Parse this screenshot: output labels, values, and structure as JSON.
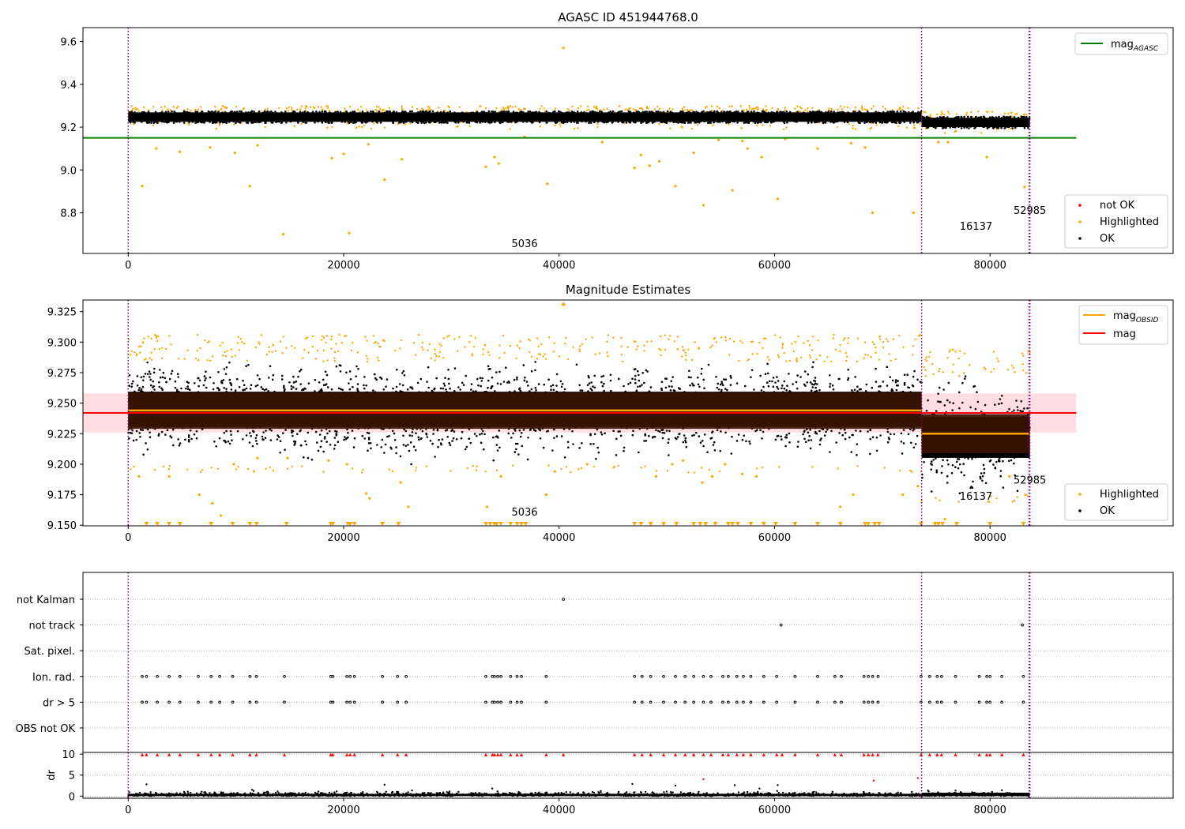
{
  "chart_data": [
    {
      "type": "scatter",
      "title": "AGASC ID 451944768.0",
      "xlim": [
        -4200,
        97000
      ],
      "ylim": [
        8.61,
        9.665
      ],
      "xticks": [
        0,
        20000,
        40000,
        60000,
        80000
      ],
      "yticks": [
        8.8,
        9.0,
        9.2,
        9.4,
        9.6
      ],
      "ytick_labels": [
        "8.8",
        "9.0",
        "9.2",
        "9.4",
        "9.6"
      ],
      "observation_boundaries": [
        0,
        73650,
        83700
      ],
      "observation_labels": [
        {
          "x": 36800,
          "y": 8.64,
          "text": "5036"
        },
        {
          "x": 78700,
          "y": 8.72,
          "text": "16137"
        },
        {
          "x": 83700,
          "y": 8.795,
          "text": "52985"
        }
      ],
      "hlines": [
        {
          "name": "mag",
          "subscript": "AGASC",
          "y": 9.15,
          "xmin": -4200,
          "xmax": 88000,
          "color": "#008000"
        }
      ],
      "ok_bands": [
        {
          "xmin": 0,
          "xmax": 73650,
          "center": 9.247,
          "spread": 0.022
        },
        {
          "xmin": 73650,
          "xmax": 83700,
          "center": 9.222,
          "spread": 0.022
        }
      ],
      "highlighted_points": [
        [
          1300,
          8.925
        ],
        [
          2600,
          9.1
        ],
        [
          4800,
          9.085
        ],
        [
          7600,
          9.105
        ],
        [
          9900,
          9.08
        ],
        [
          11300,
          8.925
        ],
        [
          12000,
          9.115
        ],
        [
          14400,
          8.7
        ],
        [
          18900,
          9.055
        ],
        [
          20000,
          9.075
        ],
        [
          20500,
          8.705
        ],
        [
          22300,
          9.12
        ],
        [
          23800,
          8.955
        ],
        [
          25400,
          9.05
        ],
        [
          33200,
          9.015
        ],
        [
          34000,
          9.06
        ],
        [
          34400,
          9.03
        ],
        [
          36800,
          9.155
        ],
        [
          38900,
          8.935
        ],
        [
          40400,
          9.57
        ],
        [
          44000,
          9.13
        ],
        [
          47000,
          9.01
        ],
        [
          47600,
          9.07
        ],
        [
          48400,
          9.02
        ],
        [
          49300,
          9.04
        ],
        [
          50800,
          8.925
        ],
        [
          52500,
          9.08
        ],
        [
          53400,
          8.835
        ],
        [
          54800,
          9.14
        ],
        [
          56100,
          8.905
        ],
        [
          57000,
          9.135
        ],
        [
          57500,
          9.1
        ],
        [
          58800,
          9.06
        ],
        [
          60300,
          8.865
        ],
        [
          61000,
          9.145
        ],
        [
          64000,
          9.1
        ],
        [
          67100,
          9.125
        ],
        [
          68400,
          9.105
        ],
        [
          69100,
          8.8
        ],
        [
          72900,
          8.8
        ],
        [
          75200,
          9.13
        ],
        [
          76100,
          9.13
        ],
        [
          79700,
          9.06
        ],
        [
          83200,
          8.92
        ]
      ],
      "highlighted_fringe": {
        "upper": 9.285,
        "lower": 9.205,
        "density": 430
      },
      "legend_top": {
        "position": "upper right",
        "entries": [
          {
            "label": "mag",
            "subscript": "AGASC",
            "kind": "line",
            "color": "#008000"
          }
        ]
      },
      "legend_bottom": {
        "position": "lower right",
        "entries": [
          {
            "label": "not OK",
            "kind": "marker",
            "color": "#ff0000"
          },
          {
            "label": "Highlighted",
            "kind": "marker",
            "color": "#ffa500"
          },
          {
            "label": "OK",
            "kind": "marker",
            "color": "#000000"
          }
        ]
      }
    },
    {
      "type": "scatter",
      "title": "Magnitude Estimates",
      "xlim": [
        -4200,
        97000
      ],
      "ylim": [
        9.1495,
        9.3345
      ],
      "xticks": [
        0,
        20000,
        40000,
        60000,
        80000
      ],
      "yticks": [
        9.15,
        9.175,
        9.2,
        9.225,
        9.25,
        9.275,
        9.3,
        9.325
      ],
      "ytick_labels": [
        "9.150",
        "9.175",
        "9.200",
        "9.225",
        "9.250",
        "9.275",
        "9.300",
        "9.325"
      ],
      "observation_boundaries": [
        0,
        73650,
        83700
      ],
      "observation_labels": [
        {
          "x": 36800,
          "y": 9.158,
          "text": "5036"
        },
        {
          "x": 78700,
          "y": 9.171,
          "text": "16137"
        },
        {
          "x": 83700,
          "y": 9.184,
          "text": "52985"
        }
      ],
      "mag_band": {
        "center": 9.242,
        "half_width": 0.016,
        "xmin": -4200,
        "xmax": 88000,
        "color": "#ff0000"
      },
      "obsid_bands": [
        {
          "xmin": 0,
          "xmax": 73650,
          "center": 9.244,
          "half_width": 0.015
        },
        {
          "xmin": 73650,
          "xmax": 83700,
          "center": 9.225,
          "half_width": 0.016
        }
      ],
      "hlines": [
        {
          "name": "mag",
          "subscript": "OBSID",
          "segments": [
            {
              "xmin": 0,
              "xmax": 73650,
              "y": 9.244
            },
            {
              "xmin": 73650,
              "xmax": 83700,
              "y": 9.225
            }
          ],
          "color": "#ffa500"
        },
        {
          "name": "mag",
          "y": 9.242,
          "xmin": -4200,
          "xmax": 88000,
          "color": "#ff0000"
        }
      ],
      "ok_bands": [
        {
          "xmin": 0,
          "xmax": 73650,
          "center": 9.245,
          "spread": 0.012,
          "min": 9.199,
          "max": 9.284
        },
        {
          "xmin": 73650,
          "xmax": 83700,
          "center": 9.222,
          "spread": 0.014,
          "min": 9.174,
          "max": 9.272
        }
      ],
      "highlighted_points": [
        [
          1000,
          9.19
        ],
        [
          3800,
          9.19
        ],
        [
          6600,
          9.175
        ],
        [
          7800,
          9.168
        ],
        [
          8600,
          9.158
        ],
        [
          9800,
          9.2
        ],
        [
          12000,
          9.205
        ],
        [
          14800,
          9.205
        ],
        [
          18600,
          9.203
        ],
        [
          20300,
          9.2
        ],
        [
          22100,
          9.176
        ],
        [
          22400,
          9.172
        ],
        [
          25300,
          9.185
        ],
        [
          26000,
          9.165
        ],
        [
          33300,
          9.165
        ],
        [
          34600,
          9.19
        ],
        [
          38800,
          9.175
        ],
        [
          39600,
          9.194
        ],
        [
          42600,
          9.2
        ],
        [
          49000,
          9.19
        ],
        [
          50500,
          9.2
        ],
        [
          51500,
          9.203
        ],
        [
          53300,
          9.185
        ],
        [
          54200,
          9.19
        ],
        [
          55400,
          9.2
        ],
        [
          57000,
          9.192
        ],
        [
          58300,
          9.19
        ],
        [
          66100,
          9.165
        ],
        [
          67300,
          9.175
        ],
        [
          71900,
          9.175
        ],
        [
          73300,
          9.182
        ],
        [
          75800,
          9.155
        ],
        [
          81800,
          9.19
        ],
        [
          83300,
          9.175
        ],
        [
          40400,
          9.332
        ]
      ],
      "clipped_low_x": [
        1700,
        2700,
        3800,
        4800,
        7700,
        9700,
        11300,
        11900,
        14700,
        18800,
        19000,
        20400,
        20600,
        21000,
        23600,
        25100,
        33200,
        33600,
        34000,
        34200,
        34600,
        35500,
        36100,
        36500,
        36900,
        47000,
        47600,
        48500,
        49700,
        50900,
        52500,
        53100,
        53600,
        54500,
        55700,
        56100,
        56600,
        57800,
        59000,
        60100,
        61900,
        64000,
        66100,
        68400,
        68700,
        69300,
        69700,
        73600,
        74900,
        75200,
        75600,
        76900,
        80000,
        83100
      ],
      "highlighted_fringe": {
        "upper": 9.288,
        "lower": 9.204,
        "density": 470
      },
      "legend_top": {
        "position": "upper right",
        "entries": [
          {
            "label": "mag",
            "subscript": "OBSID",
            "kind": "line",
            "color": "#ffa500"
          },
          {
            "label": "mag",
            "kind": "line",
            "color": "#ff0000"
          }
        ]
      },
      "legend_bottom": {
        "position": "lower right",
        "entries": [
          {
            "label": "Highlighted",
            "kind": "marker",
            "color": "#ffa500"
          },
          {
            "label": "OK",
            "kind": "marker",
            "color": "#000000"
          }
        ]
      }
    },
    {
      "type": "scatter",
      "xlim": [
        -4200,
        97000
      ],
      "xticks": [
        0,
        20000,
        40000,
        60000,
        80000
      ],
      "observation_boundaries": [
        0,
        73650,
        83700
      ],
      "flag_rows": [
        "not Kalman",
        "not track",
        "Sat. pixel.",
        "Ion. rad.",
        "dr > 5",
        "OBS not OK"
      ],
      "flag_points": {
        "not Kalman": [
          40400
        ],
        "not track": [
          60600,
          83000
        ],
        "Sat. pixel.": [],
        "Ion. rad.": [
          1300,
          1700,
          2700,
          3800,
          4800,
          6500,
          7700,
          8500,
          9700,
          11300,
          11900,
          14500,
          18800,
          19000,
          20300,
          20600,
          21000,
          23600,
          25000,
          25800,
          33200,
          33800,
          34000,
          34300,
          34600,
          35500,
          36100,
          36500,
          38800,
          47000,
          47700,
          48500,
          49700,
          50800,
          51700,
          52500,
          53400,
          54100,
          55200,
          55700,
          56500,
          57100,
          57800,
          59000,
          60200,
          61900,
          64000,
          65600,
          66200,
          68300,
          68700,
          69100,
          69600,
          73600,
          74400,
          75100,
          75500,
          76800,
          79000,
          79700,
          80000,
          81100,
          83100
        ],
        "dr > 5": [
          1300,
          1700,
          2700,
          3800,
          4800,
          6500,
          7700,
          8500,
          9700,
          11300,
          11900,
          14500,
          18800,
          19000,
          20300,
          20600,
          21000,
          23600,
          25000,
          25800,
          33200,
          33800,
          34000,
          34300,
          34600,
          35500,
          36100,
          36500,
          38800,
          47000,
          47700,
          48500,
          49700,
          50800,
          51700,
          52500,
          53400,
          54100,
          55200,
          55700,
          56500,
          57100,
          57800,
          59000,
          60200,
          61900,
          64000,
          65600,
          66200,
          68300,
          68700,
          69100,
          69600,
          73600,
          74400,
          75100,
          75500,
          76800,
          79000,
          79700,
          80000,
          81100,
          83100
        ],
        "OBS not OK": []
      },
      "ylabel": "dr",
      "dr_ylim": [
        -0.5,
        10.4
      ],
      "dr_yticks": [
        0,
        5,
        10
      ],
      "dr_clipped_x": [
        1300,
        1700,
        2700,
        3800,
        4800,
        6500,
        7700,
        8500,
        9700,
        11300,
        11900,
        14500,
        18800,
        19000,
        20300,
        20600,
        21000,
        23600,
        25000,
        25800,
        33200,
        33800,
        34000,
        34300,
        34600,
        35500,
        36100,
        36500,
        38800,
        40400,
        47000,
        47700,
        48500,
        49700,
        50800,
        51700,
        52500,
        53400,
        54100,
        55200,
        55700,
        56500,
        57100,
        57800,
        59000,
        60200,
        60700,
        61900,
        64000,
        65600,
        66200,
        68300,
        68700,
        69100,
        69600,
        73600,
        74400,
        75100,
        75500,
        76800,
        79000,
        79700,
        80000,
        81100,
        83100
      ],
      "dr_outliers": [
        [
          1700,
          2.8
        ],
        [
          11500,
          1.5
        ],
        [
          23800,
          2.7
        ],
        [
          33800,
          1.8
        ],
        [
          46800,
          2.9
        ],
        [
          50800,
          2.5
        ],
        [
          53400,
          4.0
        ],
        [
          56300,
          2.6
        ],
        [
          58600,
          1.8
        ],
        [
          60300,
          2.6
        ],
        [
          69200,
          3.7
        ],
        [
          73300,
          4.3
        ],
        [
          76800,
          1.3
        ]
      ]
    }
  ]
}
